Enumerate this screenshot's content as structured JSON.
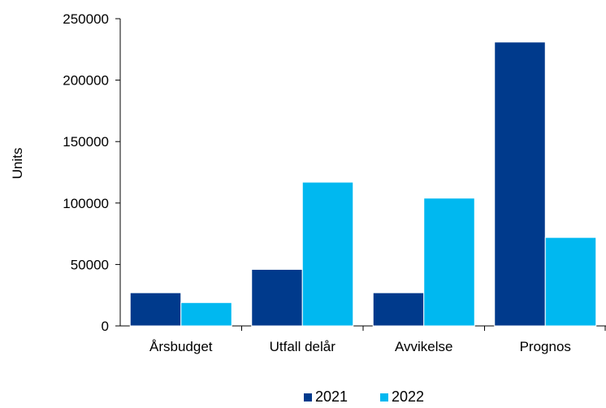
{
  "chart_data": {
    "type": "bar",
    "categories": [
      "Årsbudget",
      "Utfall delår",
      "Avvikelse",
      "Prognos"
    ],
    "series": [
      {
        "name": "2021",
        "color": "#003a8c",
        "values": [
          27000,
          46000,
          27000,
          231000
        ]
      },
      {
        "name": "2022",
        "color": "#00b8f0",
        "values": [
          19000,
          117000,
          104000,
          72000
        ]
      }
    ],
    "title": "",
    "xlabel": "",
    "ylabel": "Units",
    "ylim": [
      0,
      250000
    ],
    "yticks": [
      0,
      50000,
      100000,
      150000,
      200000,
      250000
    ],
    "ytick_labels": [
      "0",
      "50000",
      "100000",
      "150000",
      "200000",
      "250000"
    ],
    "grid": false,
    "legend_position": "bottom-center"
  }
}
